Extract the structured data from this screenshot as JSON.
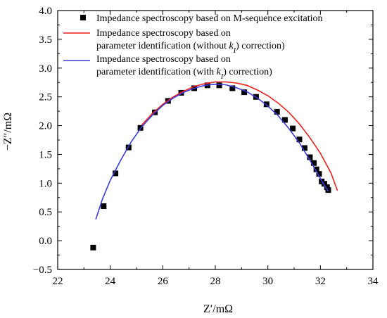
{
  "chart_data": {
    "type": "line",
    "xlabel": "Z′/mΩ",
    "ylabel": "−Z″/mΩ",
    "xlim": [
      22,
      34
    ],
    "ylim": [
      -0.5,
      4.0
    ],
    "x_ticks": [
      "22",
      "24",
      "26",
      "28",
      "30",
      "32",
      "34"
    ],
    "y_ticks": [
      "−0.5",
      "0.0",
      "0.5",
      "1.0",
      "1.5",
      "2.0",
      "2.5",
      "3.0",
      "3.5",
      "4.0"
    ],
    "legend_position": "top",
    "series": [
      {
        "name": "Impedance spectroscopy based on M-sequence excitation",
        "kind": "scatter",
        "marker": "square",
        "color": "#000000",
        "x": [
          23.35,
          23.75,
          24.2,
          24.7,
          25.15,
          25.7,
          26.2,
          26.7,
          27.2,
          27.7,
          28.15,
          28.65,
          29.1,
          29.55,
          29.95,
          30.35,
          30.65,
          30.95,
          31.2,
          31.4,
          31.6,
          31.75,
          31.85,
          31.95,
          32.05,
          32.15,
          32.25,
          32.3
        ],
        "y": [
          -0.12,
          0.6,
          1.17,
          1.62,
          1.96,
          2.23,
          2.43,
          2.57,
          2.65,
          2.7,
          2.7,
          2.65,
          2.58,
          2.5,
          2.37,
          2.24,
          2.1,
          1.95,
          1.76,
          1.61,
          1.45,
          1.35,
          1.24,
          1.16,
          1.03,
          0.99,
          0.93,
          0.88
        ]
      },
      {
        "name": "Impedance spectroscopy based on parameter identification (without kI correction)",
        "kind": "line",
        "color": "#e8211d",
        "x": [
          25.2,
          25.6,
          26.0,
          26.4,
          26.8,
          27.2,
          27.6,
          28.0,
          28.4,
          28.8,
          29.2,
          29.6,
          30.0,
          30.4,
          30.8,
          31.2,
          31.6,
          32.0,
          32.4,
          32.65
        ],
        "y": [
          2.01,
          2.21,
          2.37,
          2.5,
          2.6,
          2.68,
          2.73,
          2.76,
          2.76,
          2.74,
          2.7,
          2.62,
          2.52,
          2.39,
          2.23,
          2.03,
          1.79,
          1.52,
          1.18,
          0.87
        ]
      },
      {
        "name": "Impedance spectroscopy based on parameter identification (with kI correction)",
        "kind": "line",
        "color": "#3b3bd6",
        "x": [
          23.45,
          23.7,
          24.0,
          24.4,
          24.8,
          25.2,
          25.6,
          26.0,
          26.4,
          26.8,
          27.2,
          27.6,
          28.0,
          28.4,
          28.8,
          29.2,
          29.6,
          30.0,
          30.4,
          30.8,
          31.2,
          31.6,
          31.9,
          32.1,
          32.3
        ],
        "y": [
          0.37,
          0.72,
          1.05,
          1.4,
          1.72,
          1.98,
          2.18,
          2.35,
          2.48,
          2.58,
          2.65,
          2.7,
          2.72,
          2.71,
          2.66,
          2.59,
          2.48,
          2.34,
          2.17,
          1.95,
          1.7,
          1.4,
          1.16,
          1.0,
          0.86
        ]
      }
    ],
    "legend": {
      "entries": [
        {
          "lines": [
            "Impedance spectroscopy based on M-sequence excitation"
          ]
        },
        {
          "lines": [
            "Impedance spectroscopy based on",
            "parameter identification (without ",
            ") correction)"
          ],
          "sym_line": 1
        },
        {
          "lines": [
            "Impedance spectroscopy based on",
            "parameter identification (with ",
            ") correction)"
          ],
          "sym_line": 1
        }
      ],
      "k_symbol": "k",
      "k_subscript": "I"
    }
  }
}
